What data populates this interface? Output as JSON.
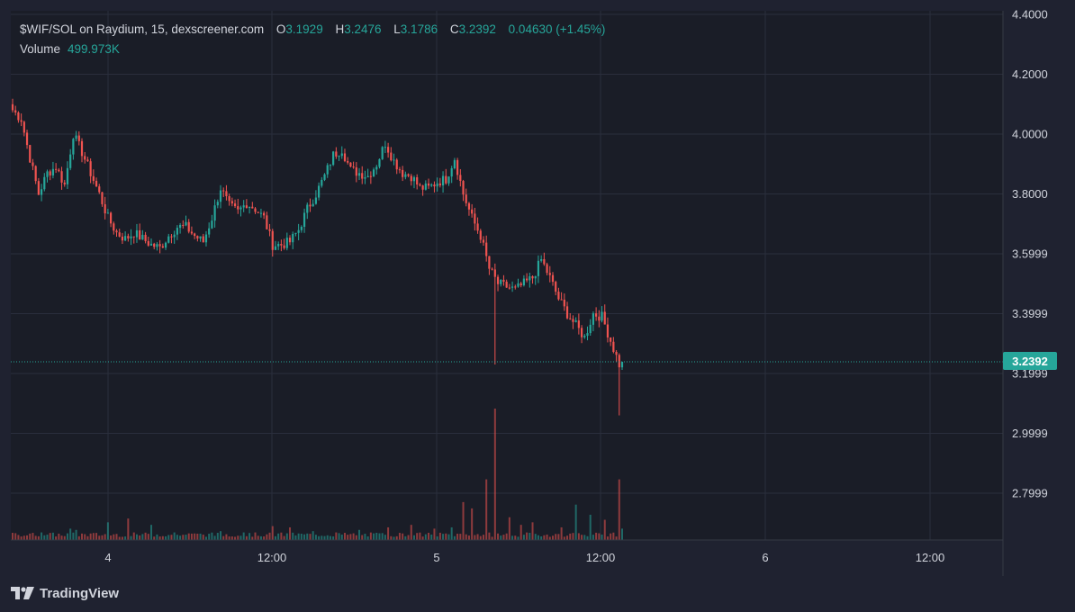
{
  "legend": {
    "symbol": "$WIF/SOL on Raydium, 15, dexscreener.com",
    "open_label": "O",
    "open": "3.1929",
    "high_label": "H",
    "high": "3.2476",
    "low_label": "L",
    "low": "3.1786",
    "close_label": "C",
    "close": "3.2392",
    "change": "0.04630 (+1.45%)",
    "volume_label": "Volume",
    "volume": "499.973K"
  },
  "last_price_tag": "3.2392",
  "brand": "TradingView",
  "colors": {
    "background": "#1f2230",
    "up": "#26a69a",
    "down": "#ef5350",
    "grid": "#2a2e3c",
    "text": "#d1d4dc"
  },
  "chart_data": {
    "type": "candlestick",
    "title": "$WIF/SOL on Raydium, 15, dexscreener.com",
    "interval": "15",
    "y_axis": {
      "side": "right",
      "ticks": [
        "4.4000",
        "4.2000",
        "4.0000",
        "3.8000",
        "3.5999",
        "3.3999",
        "3.1999",
        "2.9999",
        "2.7999"
      ],
      "ylim": [
        2.64,
        4.42
      ]
    },
    "x_axis": {
      "ticks": [
        "4",
        "12:00",
        "5",
        "12:00",
        "6",
        "12:00"
      ]
    },
    "last_price": 3.2392,
    "grid": true,
    "price_path": [
      [
        0,
        4.08
      ],
      [
        3,
        4.05
      ],
      [
        6,
        3.92
      ],
      [
        9,
        3.8
      ],
      [
        12,
        3.87
      ],
      [
        15,
        3.89
      ],
      [
        18,
        3.83
      ],
      [
        21,
        4.0
      ],
      [
        24,
        3.94
      ],
      [
        27,
        3.87
      ],
      [
        30,
        3.8
      ],
      [
        33,
        3.72
      ],
      [
        36,
        3.67
      ],
      [
        39,
        3.65
      ],
      [
        42,
        3.67
      ],
      [
        45,
        3.65
      ],
      [
        48,
        3.63
      ],
      [
        51,
        3.62
      ],
      [
        54,
        3.66
      ],
      [
        57,
        3.69
      ],
      [
        60,
        3.69
      ],
      [
        63,
        3.66
      ],
      [
        66,
        3.64
      ],
      [
        69,
        3.72
      ],
      [
        72,
        3.82
      ],
      [
        75,
        3.76
      ],
      [
        78,
        3.74
      ],
      [
        81,
        3.77
      ],
      [
        84,
        3.75
      ],
      [
        87,
        3.72
      ],
      [
        90,
        3.63
      ],
      [
        93,
        3.63
      ],
      [
        96,
        3.64
      ],
      [
        99,
        3.68
      ],
      [
        102,
        3.75
      ],
      [
        105,
        3.8
      ],
      [
        108,
        3.86
      ],
      [
        111,
        3.93
      ],
      [
        114,
        3.95
      ],
      [
        117,
        3.88
      ],
      [
        120,
        3.87
      ],
      [
        123,
        3.86
      ],
      [
        126,
        3.9
      ],
      [
        129,
        3.97
      ],
      [
        132,
        3.91
      ],
      [
        135,
        3.87
      ],
      [
        138,
        3.86
      ],
      [
        141,
        3.82
      ],
      [
        144,
        3.82
      ],
      [
        147,
        3.84
      ],
      [
        150,
        3.85
      ],
      [
        153,
        3.92
      ],
      [
        156,
        3.8
      ],
      [
        159,
        3.72
      ],
      [
        162,
        3.66
      ],
      [
        165,
        3.55
      ],
      [
        168,
        3.5
      ],
      [
        171,
        3.49
      ],
      [
        174,
        3.48
      ],
      [
        177,
        3.5
      ],
      [
        180,
        3.52
      ],
      [
        183,
        3.58
      ],
      [
        186,
        3.52
      ],
      [
        189,
        3.45
      ],
      [
        192,
        3.4
      ],
      [
        195,
        3.36
      ],
      [
        198,
        3.32
      ],
      [
        201,
        3.4
      ],
      [
        204,
        3.39
      ],
      [
        207,
        3.31
      ],
      [
        210,
        3.23
      ],
      [
        211,
        3.2392
      ]
    ],
    "volume_peaks_k": [
      [
        0,
        30
      ],
      [
        10,
        60
      ],
      [
        20,
        90
      ],
      [
        22,
        80
      ],
      [
        33,
        140
      ],
      [
        40,
        170
      ],
      [
        48,
        120
      ],
      [
        56,
        60
      ],
      [
        64,
        50
      ],
      [
        72,
        70
      ],
      [
        80,
        60
      ],
      [
        90,
        110
      ],
      [
        96,
        100
      ],
      [
        104,
        70
      ],
      [
        112,
        60
      ],
      [
        120,
        80
      ],
      [
        130,
        100
      ],
      [
        138,
        120
      ],
      [
        146,
        90
      ],
      [
        152,
        100
      ],
      [
        156,
        300
      ],
      [
        159,
        250
      ],
      [
        164,
        480
      ],
      [
        167,
        1040
      ],
      [
        172,
        180
      ],
      [
        176,
        120
      ],
      [
        180,
        140
      ],
      [
        190,
        100
      ],
      [
        195,
        280
      ],
      [
        200,
        200
      ],
      [
        205,
        160
      ],
      [
        210,
        480
      ],
      [
        211,
        90
      ]
    ]
  }
}
